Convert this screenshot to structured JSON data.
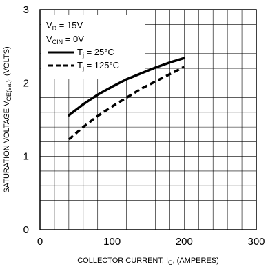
{
  "chart_data": {
    "type": "line",
    "xlabel": {
      "main": "COLLECTOR CURRENT, I",
      "sub": "C",
      "rest": ", (AMPERES)"
    },
    "ylabel": {
      "main": "SATURATION VOLTAGE V",
      "sub": "CE(sat)",
      "rest": ", (VOLTS)"
    },
    "xlim": [
      0,
      300
    ],
    "ylim": [
      0,
      3
    ],
    "x_ticks": [
      "0",
      "100",
      "200",
      "300"
    ],
    "y_ticks": [
      "0",
      "1",
      "2",
      "3"
    ],
    "grid": true,
    "conditions": [
      {
        "main": "V",
        "sub": "D",
        "rest": " = 15V"
      },
      {
        "main": "V",
        "sub": "CIN",
        "rest": " = 0V"
      }
    ],
    "series": [
      {
        "name": "T",
        "name_sub": "j",
        "name_rest": " = 25°C",
        "style": "solid",
        "color": "#000000",
        "x": [
          40,
          60,
          80,
          100,
          120,
          140,
          160,
          180,
          200
        ],
        "y": [
          1.56,
          1.71,
          1.84,
          1.95,
          2.05,
          2.13,
          2.21,
          2.28,
          2.34
        ]
      },
      {
        "name": "T",
        "name_sub": "j",
        "name_rest": " = 125°C",
        "style": "dashed",
        "color": "#000000",
        "x": [
          40,
          60,
          80,
          100,
          120,
          140,
          160,
          180,
          200
        ],
        "y": [
          1.23,
          1.4,
          1.55,
          1.68,
          1.8,
          1.92,
          2.02,
          2.12,
          2.22
        ]
      }
    ]
  }
}
